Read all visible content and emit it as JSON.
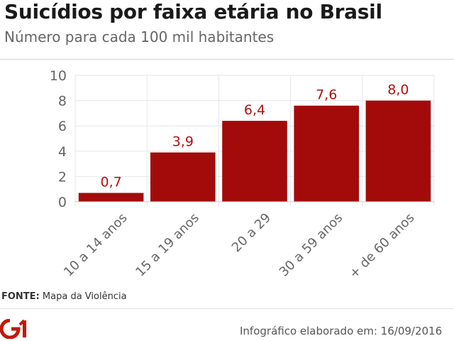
{
  "header": {
    "title": "Suicídios por faixa etária no Brasil",
    "subtitle": "Número para cada 100 mil habitantes"
  },
  "footer": {
    "source_label": "FONTE:",
    "source_value": "Mapa da Violência",
    "credit": "Infográfico elaborado em: 16/09/2016",
    "logo_text": "G1"
  },
  "colors": {
    "bar": "#a30b0b",
    "value_label": "#b31010",
    "grid": "#e6e6e6",
    "axis_text": "#666666"
  },
  "chart_data": {
    "type": "bar",
    "title": "Suicídios por faixa etária no Brasil",
    "subtitle": "Número para cada 100 mil habitantes",
    "xlabel": "",
    "ylabel": "",
    "categories": [
      "10 a 14 anos",
      "15 a 19 anos",
      "20 a 29",
      "30 a 59 anos",
      "+ de 60 anos"
    ],
    "values": [
      0.7,
      3.9,
      6.4,
      7.6,
      8.0
    ],
    "value_labels": [
      "0,7",
      "3,9",
      "6,4",
      "7,6",
      "8,0"
    ],
    "ylim": [
      0,
      10
    ],
    "yticks": [
      0,
      2,
      4,
      6,
      8,
      10
    ],
    "grid": true,
    "legend": "none"
  }
}
